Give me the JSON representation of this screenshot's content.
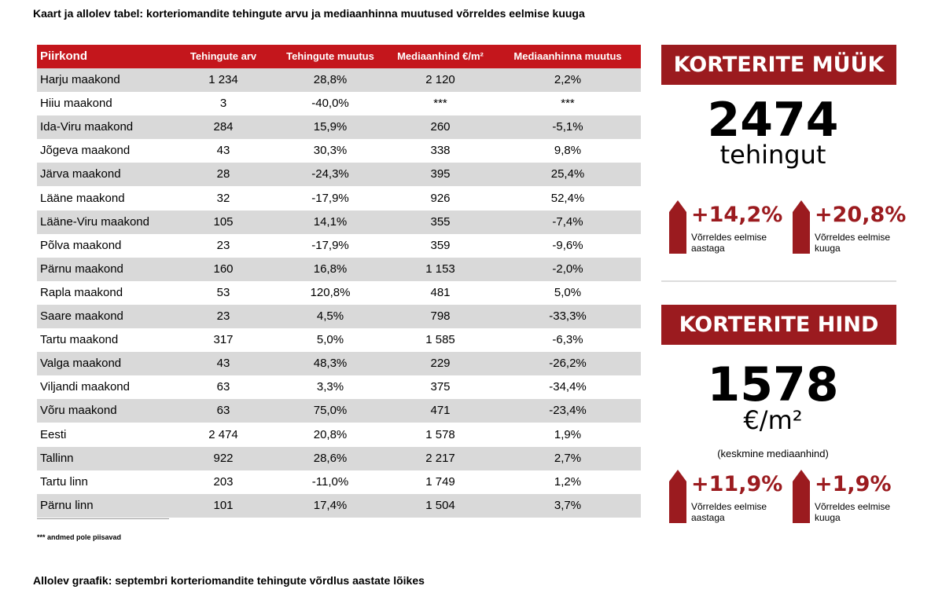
{
  "title": "Kaart ja allolev tabel: korteriomandite tehingute arvu ja mediaanhinna muutused võrreldes eelmise kuuga",
  "table": {
    "headers": [
      "Piirkond",
      "Tehingute arv",
      "Tehingute muutus",
      "Mediaanhind €/m²",
      "Mediaanhinna muutus"
    ],
    "rows": [
      [
        "Harju maakond",
        "1 234",
        "28,8%",
        "2 120",
        "2,2%"
      ],
      [
        "Hiiu maakond",
        "3",
        "-40,0%",
        "***",
        "***"
      ],
      [
        "Ida-Viru maakond",
        "284",
        "15,9%",
        "260",
        "-5,1%"
      ],
      [
        "Jõgeva maakond",
        "43",
        "30,3%",
        "338",
        "9,8%"
      ],
      [
        "Järva maakond",
        "28",
        "-24,3%",
        "395",
        "25,4%"
      ],
      [
        "Lääne maakond",
        "32",
        "-17,9%",
        "926",
        "52,4%"
      ],
      [
        "Lääne-Viru maakond",
        "105",
        "14,1%",
        "355",
        "-7,4%"
      ],
      [
        "Põlva maakond",
        "23",
        "-17,9%",
        "359",
        "-9,6%"
      ],
      [
        "Pärnu maakond",
        "160",
        "16,8%",
        "1 153",
        "-2,0%"
      ],
      [
        "Rapla maakond",
        "53",
        "120,8%",
        "481",
        "5,0%"
      ],
      [
        "Saare maakond",
        "23",
        "4,5%",
        "798",
        "-33,3%"
      ],
      [
        "Tartu maakond",
        "317",
        "5,0%",
        "1 585",
        "-6,3%"
      ],
      [
        "Valga maakond",
        "43",
        "48,3%",
        "229",
        "-26,2%"
      ],
      [
        "Viljandi maakond",
        "63",
        "3,3%",
        "375",
        "-34,4%"
      ],
      [
        "Võru maakond",
        "63",
        "75,0%",
        "471",
        "-23,4%"
      ],
      [
        "Eesti",
        "2 474",
        "20,8%",
        "1 578",
        "1,9%"
      ],
      [
        "Tallinn",
        "922",
        "28,6%",
        "2 217",
        "2,7%"
      ],
      [
        "Tartu linn",
        "203",
        "-11,0%",
        "1 749",
        "1,2%"
      ],
      [
        "Pärnu linn",
        "101",
        "17,4%",
        "1 504",
        "3,7%"
      ]
    ]
  },
  "footnote": "*** andmed pole piisavad",
  "panels": [
    {
      "title": "KORTERITE MÜÜK",
      "value": "2474",
      "unit": "tehingut",
      "changes": [
        {
          "value": "+14,2%",
          "label": "Võrreldes eelmise aastaga"
        },
        {
          "value": "+20,8%",
          "label": "Võrreldes eelmise kuuga"
        }
      ]
    },
    {
      "title": "KORTERITE HIND",
      "value": "1578",
      "unit": "€/m²",
      "note": "(keskmine mediaanhind)",
      "changes": [
        {
          "value": "+11,9%",
          "label": "Võrreldes eelmise aastaga"
        },
        {
          "value": "+1,9%",
          "label": "Võrreldes eelmise kuuga"
        }
      ]
    }
  ],
  "subtitle": "Allolev graafik: septembri korteriomandite tehingute võrdlus aastate lõikes"
}
